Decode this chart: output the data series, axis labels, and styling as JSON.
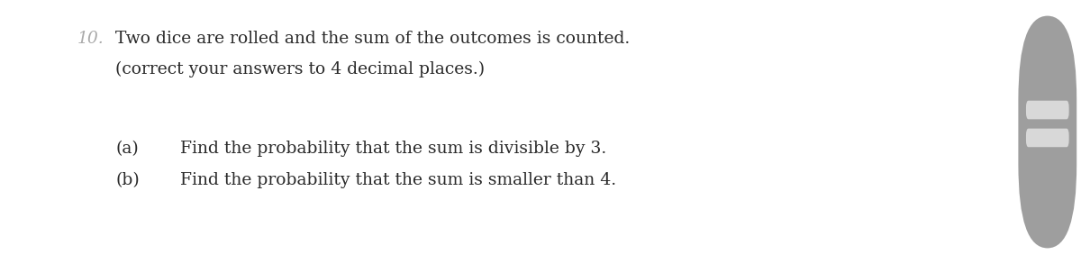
{
  "background_color": "#ffffff",
  "question_number": "10.",
  "line1": "Two dice are rolled and the sum of the outcomes is counted.",
  "line2": "(correct your answers to 4 decimal places.)",
  "part_a_label": "(a)",
  "part_a_text": "Find the probability that the sum is divisible by 3.",
  "part_b_label": "(b)",
  "part_b_text": "Find the probability that the sum is smaller than 4.",
  "text_color": "#2a2a2a",
  "font_size": 13.5,
  "number_color": "#aaaaaa",
  "scrollbar_bg": "#9e9e9e",
  "scrollbar_handle": "#d8d8d8"
}
